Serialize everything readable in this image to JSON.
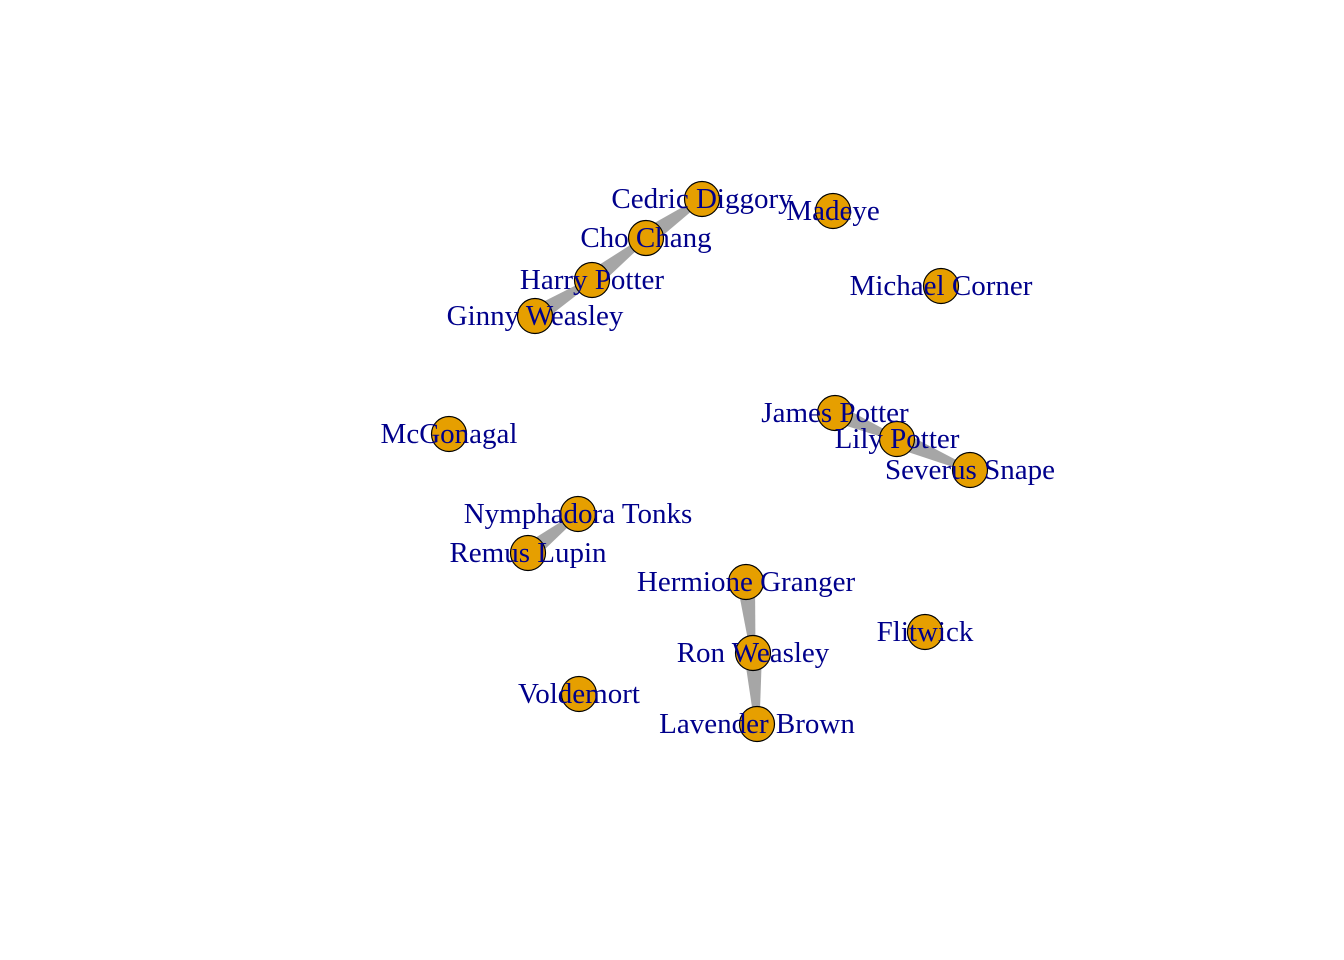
{
  "graph": {
    "node_color": "#e69f00",
    "node_border_color": "#000000",
    "label_color": "#00008b",
    "edge_color": "#a6a6a6",
    "nodes": [
      {
        "id": "cedric",
        "label": "Cedric Diggory"
      },
      {
        "id": "madeye",
        "label": "Madeye"
      },
      {
        "id": "cho",
        "label": "Cho Chang"
      },
      {
        "id": "harry",
        "label": "Harry Potter"
      },
      {
        "id": "michael",
        "label": "Michael Corner"
      },
      {
        "id": "ginny",
        "label": "Ginny Weasley"
      },
      {
        "id": "james",
        "label": "James Potter"
      },
      {
        "id": "mcgonagal",
        "label": "McGonagal"
      },
      {
        "id": "lily",
        "label": "Lily Potter"
      },
      {
        "id": "severus",
        "label": "Severus Snape"
      },
      {
        "id": "tonks",
        "label": "Nymphadora Tonks"
      },
      {
        "id": "remus",
        "label": "Remus Lupin"
      },
      {
        "id": "hermione",
        "label": "Hermione Granger"
      },
      {
        "id": "flitwick",
        "label": "Flitwick"
      },
      {
        "id": "ron",
        "label": "Ron Weasley"
      },
      {
        "id": "voldemort",
        "label": "Voldemort"
      },
      {
        "id": "lavender",
        "label": "Lavender Brown"
      }
    ],
    "edges": [
      {
        "from": "ginny",
        "to": "harry"
      },
      {
        "from": "harry",
        "to": "cho"
      },
      {
        "from": "cho",
        "to": "cedric"
      },
      {
        "from": "james",
        "to": "lily"
      },
      {
        "from": "lily",
        "to": "severus"
      },
      {
        "from": "remus",
        "to": "tonks"
      },
      {
        "from": "hermione",
        "to": "ron"
      },
      {
        "from": "ron",
        "to": "lavender"
      }
    ]
  }
}
